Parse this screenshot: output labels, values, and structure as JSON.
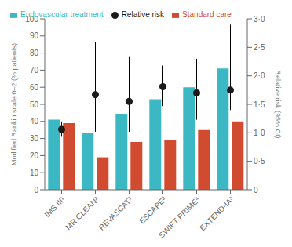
{
  "chart_data": {
    "type": "bar",
    "categories": [
      "IMS III¹",
      "MR CLEAN²",
      "REVASCAT³",
      "ESCAPE²",
      "SWIFT PRIME⁴",
      "EXTEND-IA³"
    ],
    "series": [
      {
        "name": "Endovascular treatment",
        "color": "#3BB8C4",
        "values": [
          41,
          33,
          44,
          53,
          60,
          71
        ]
      },
      {
        "name": "Standard care",
        "color": "#D04B2F",
        "values": [
          39,
          19,
          28,
          29,
          35,
          40
        ]
      },
      {
        "name": "Relative risk",
        "type": "scatter",
        "axis": "y2",
        "color": "#1a1a1a",
        "marker": "circle",
        "values": [
          1.06,
          1.67,
          1.55,
          1.81,
          1.7,
          1.75
        ],
        "ci_low": [
          0.93,
          1.02,
          1.02,
          1.47,
          1.23,
          1.4
        ],
        "ci_high": [
          1.2,
          2.6,
          2.33,
          2.18,
          2.3,
          2.9
        ]
      }
    ],
    "ylabel": "Modified Rankin scale 0–2 (% patients)",
    "y2label": "Relative risk (95% CI)",
    "ylim": [
      0,
      100
    ],
    "yticks": [
      0,
      10,
      20,
      30,
      40,
      50,
      60,
      70,
      80,
      90,
      100
    ],
    "y2lim": [
      0,
      3.0
    ],
    "y2ticks": [
      0,
      {
        "value": 0.5,
        "label": "0·5"
      },
      {
        "value": 1.0,
        "label": "1·0"
      },
      {
        "value": 1.5,
        "label": "1·5"
      },
      {
        "value": 2.0,
        "label": "2·0"
      },
      {
        "value": 2.5,
        "label": "2·5"
      },
      {
        "value": 3.0,
        "label": "3·0"
      }
    ],
    "grid": false,
    "legend": "upper left"
  }
}
